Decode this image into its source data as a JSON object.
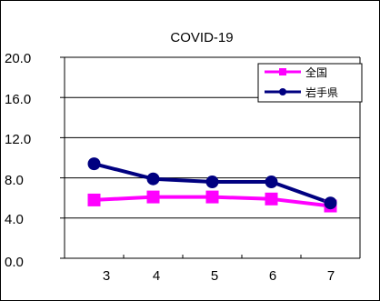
{
  "chart_data": {
    "type": "line",
    "title": "COVID-19",
    "categories": [
      "3",
      "4",
      "5",
      "6",
      "7"
    ],
    "ylim": [
      0,
      20
    ],
    "yticks": [
      "0.0",
      "4.0",
      "8.0",
      "12.0",
      "16.0",
      "20.0"
    ],
    "ytick_values": [
      0,
      4,
      8,
      12,
      16,
      20
    ],
    "grid": true,
    "legend_position": "top-right",
    "series": [
      {
        "name": "全国",
        "color": "#ff00ff",
        "marker": "square",
        "values": [
          5.8,
          6.1,
          6.1,
          5.9,
          5.2
        ]
      },
      {
        "name": "岩手県",
        "color": "#000080",
        "marker": "circle",
        "values": [
          9.4,
          7.9,
          7.6,
          7.6,
          5.5
        ]
      }
    ]
  }
}
